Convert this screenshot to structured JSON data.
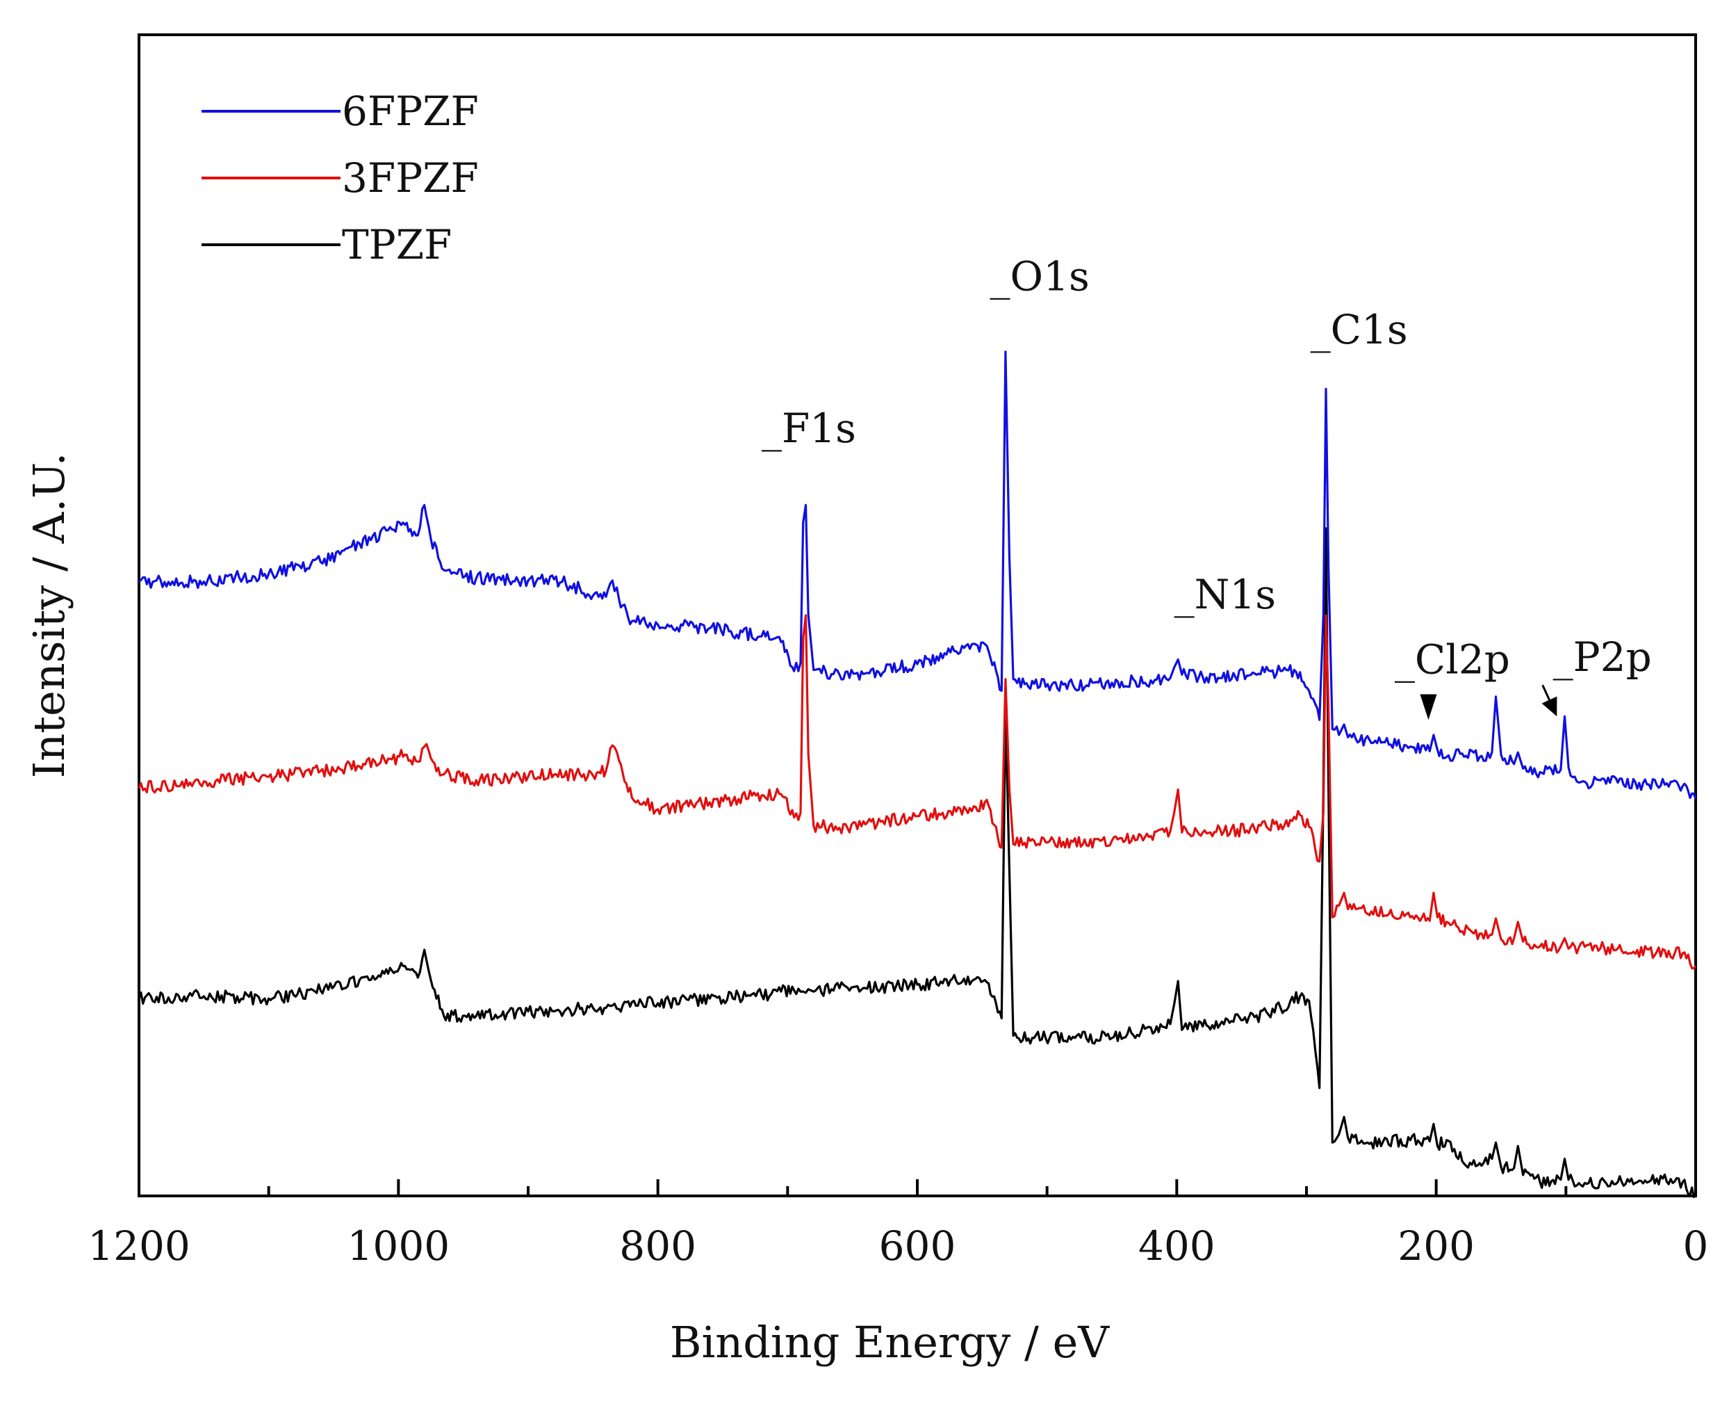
{
  "chart_data": {
    "type": "line",
    "title": "",
    "xlabel": "Binding Energy / eV",
    "ylabel": "Intensity / A.U.",
    "xlim": [
      1200,
      0
    ],
    "x_reversed": true,
    "x_ticks": [
      1200,
      1000,
      800,
      600,
      400,
      200,
      0
    ],
    "x_tick_labels": [
      "1200",
      "1000",
      "800",
      "600",
      "400",
      "200",
      "0"
    ],
    "y_ticks_shown": false,
    "ylim": [
      0,
      100
    ],
    "legend_position": "top-left",
    "colors": {
      "6FPZF": "#1010e0",
      "3FPZF": "#e01010",
      "TPZF": "#000000"
    },
    "series": [
      {
        "name": "6FPZF",
        "color": "#1010e0",
        "points": [
          [
            1200,
            52.9
          ],
          [
            1150,
            52.9
          ],
          [
            1100,
            53.6
          ],
          [
            1060,
            54.6
          ],
          [
            1030,
            56.2
          ],
          [
            1005,
            57.4
          ],
          [
            995,
            57.8
          ],
          [
            985,
            56.9
          ],
          [
            980,
            59.5
          ],
          [
            975,
            56.6
          ],
          [
            965,
            53.9
          ],
          [
            940,
            53.2
          ],
          [
            900,
            53.0
          ],
          [
            880,
            53.1
          ],
          [
            860,
            52.3
          ],
          [
            850,
            51.7
          ],
          [
            840,
            51.6
          ],
          [
            835,
            53.0
          ],
          [
            830,
            51.4
          ],
          [
            820,
            49.5
          ],
          [
            800,
            49.2
          ],
          [
            760,
            48.9
          ],
          [
            720,
            48.2
          ],
          [
            705,
            47.7
          ],
          [
            695,
            45.2
          ],
          [
            690,
            45.9
          ],
          [
            688,
            58.0
          ],
          [
            686,
            59.5
          ],
          [
            684,
            50.0
          ],
          [
            680,
            45.3
          ],
          [
            660,
            44.9
          ],
          [
            640,
            45.0
          ],
          [
            600,
            45.8
          ],
          [
            570,
            46.9
          ],
          [
            555,
            47.5
          ],
          [
            545,
            46.9
          ],
          [
            535,
            43.5
          ],
          [
            532,
            72.7
          ],
          [
            529,
            55.0
          ],
          [
            526,
            44.5
          ],
          [
            510,
            44.1
          ],
          [
            480,
            44.0
          ],
          [
            450,
            44.2
          ],
          [
            420,
            44.4
          ],
          [
            405,
            44.6
          ],
          [
            402,
            45.5
          ],
          [
            399,
            46.2
          ],
          [
            396,
            44.9
          ],
          [
            380,
            44.7
          ],
          [
            340,
            45.0
          ],
          [
            320,
            45.2
          ],
          [
            305,
            45.1
          ],
          [
            298,
            43.5
          ],
          [
            290,
            41.0
          ],
          [
            287,
            50.0
          ],
          [
            285,
            69.5
          ],
          [
            283,
            54.0
          ],
          [
            280,
            40.2
          ],
          [
            275,
            39.7
          ],
          [
            271,
            40.6
          ],
          [
            268,
            39.5
          ],
          [
            250,
            39.0
          ],
          [
            220,
            38.7
          ],
          [
            205,
            38.3
          ],
          [
            202,
            39.7
          ],
          [
            199,
            38.4
          ],
          [
            192,
            37.8
          ],
          [
            180,
            38.1
          ],
          [
            165,
            37.9
          ],
          [
            157,
            38.2
          ],
          [
            154,
            43.0
          ],
          [
            150,
            38.0
          ],
          [
            140,
            37.2
          ],
          [
            137,
            38.2
          ],
          [
            133,
            36.8
          ],
          [
            120,
            36.5
          ],
          [
            104,
            36.7
          ],
          [
            101,
            41.3
          ],
          [
            98,
            36.9
          ],
          [
            90,
            35.6
          ],
          [
            60,
            35.6
          ],
          [
            30,
            35.4
          ],
          [
            10,
            35.3
          ],
          [
            0,
            34.2
          ]
        ]
      },
      {
        "name": "3FPZF",
        "color": "#e01010",
        "points": [
          [
            1200,
            35.1
          ],
          [
            1150,
            35.7
          ],
          [
            1100,
            36.1
          ],
          [
            1060,
            36.6
          ],
          [
            1030,
            37.0
          ],
          [
            1005,
            37.6
          ],
          [
            995,
            38.0
          ],
          [
            985,
            37.4
          ],
          [
            980,
            38.7
          ],
          [
            975,
            37.7
          ],
          [
            965,
            36.3
          ],
          [
            940,
            35.8
          ],
          [
            900,
            36.1
          ],
          [
            880,
            36.3
          ],
          [
            860,
            36.3
          ],
          [
            850,
            36.2
          ],
          [
            840,
            36.6
          ],
          [
            835,
            38.8
          ],
          [
            830,
            37.5
          ],
          [
            820,
            34.3
          ],
          [
            800,
            33.3
          ],
          [
            760,
            33.9
          ],
          [
            720,
            34.5
          ],
          [
            705,
            34.6
          ],
          [
            695,
            32.6
          ],
          [
            690,
            33.0
          ],
          [
            688,
            48.0
          ],
          [
            686,
            50.0
          ],
          [
            684,
            38.0
          ],
          [
            680,
            31.9
          ],
          [
            660,
            31.7
          ],
          [
            640,
            32.0
          ],
          [
            600,
            32.7
          ],
          [
            570,
            33.1
          ],
          [
            555,
            33.5
          ],
          [
            545,
            33.6
          ],
          [
            535,
            30.0
          ],
          [
            532,
            44.5
          ],
          [
            529,
            35.0
          ],
          [
            526,
            30.3
          ],
          [
            510,
            30.6
          ],
          [
            480,
            30.5
          ],
          [
            450,
            30.6
          ],
          [
            420,
            31.0
          ],
          [
            405,
            31.4
          ],
          [
            402,
            33.0
          ],
          [
            399,
            35.0
          ],
          [
            396,
            31.3
          ],
          [
            380,
            31.3
          ],
          [
            340,
            31.6
          ],
          [
            320,
            32.0
          ],
          [
            305,
            32.8
          ],
          [
            298,
            31.8
          ],
          [
            290,
            28.8
          ],
          [
            287,
            33.0
          ],
          [
            285,
            50.0
          ],
          [
            283,
            42.0
          ],
          [
            280,
            24.0
          ],
          [
            275,
            25.0
          ],
          [
            271,
            26.1
          ],
          [
            268,
            24.7
          ],
          [
            250,
            24.5
          ],
          [
            220,
            24.0
          ],
          [
            205,
            23.7
          ],
          [
            202,
            26.1
          ],
          [
            199,
            24.0
          ],
          [
            192,
            23.6
          ],
          [
            180,
            22.8
          ],
          [
            165,
            22.6
          ],
          [
            157,
            22.5
          ],
          [
            154,
            23.9
          ],
          [
            150,
            22.1
          ],
          [
            140,
            22.2
          ],
          [
            137,
            23.6
          ],
          [
            133,
            21.9
          ],
          [
            120,
            21.5
          ],
          [
            104,
            21.5
          ],
          [
            101,
            22.2
          ],
          [
            98,
            21.3
          ],
          [
            90,
            21.4
          ],
          [
            60,
            21.3
          ],
          [
            30,
            21.0
          ],
          [
            10,
            20.9
          ],
          [
            0,
            19.8
          ]
        ]
      },
      {
        "name": "TPZF",
        "color": "#000000",
        "points": [
          [
            1200,
            17.0
          ],
          [
            1150,
            17.2
          ],
          [
            1100,
            17.0
          ],
          [
            1060,
            17.7
          ],
          [
            1030,
            18.6
          ],
          [
            1005,
            19.4
          ],
          [
            995,
            19.8
          ],
          [
            985,
            18.8
          ],
          [
            980,
            21.2
          ],
          [
            975,
            18.6
          ],
          [
            965,
            15.5
          ],
          [
            940,
            15.5
          ],
          [
            900,
            15.9
          ],
          [
            880,
            15.9
          ],
          [
            860,
            16.1
          ],
          [
            850,
            16.2
          ],
          [
            840,
            16.2
          ],
          [
            835,
            16.4
          ],
          [
            830,
            16.1
          ],
          [
            820,
            16.7
          ],
          [
            800,
            16.6
          ],
          [
            760,
            17.0
          ],
          [
            720,
            17.3
          ],
          [
            705,
            17.6
          ],
          [
            695,
            17.7
          ],
          [
            690,
            17.6
          ],
          [
            688,
            17.6
          ],
          [
            686,
            17.5
          ],
          [
            684,
            17.8
          ],
          [
            680,
            17.6
          ],
          [
            660,
            17.9
          ],
          [
            640,
            17.9
          ],
          [
            600,
            18.2
          ],
          [
            570,
            18.5
          ],
          [
            555,
            18.7
          ],
          [
            545,
            18.3
          ],
          [
            535,
            15.3
          ],
          [
            532,
            42.0
          ],
          [
            529,
            28.0
          ],
          [
            526,
            13.8
          ],
          [
            510,
            13.6
          ],
          [
            480,
            13.7
          ],
          [
            450,
            13.6
          ],
          [
            420,
            14.5
          ],
          [
            405,
            14.8
          ],
          [
            402,
            16.5
          ],
          [
            399,
            18.5
          ],
          [
            396,
            14.3
          ],
          [
            380,
            14.6
          ],
          [
            340,
            15.4
          ],
          [
            320,
            16.2
          ],
          [
            305,
            17.2
          ],
          [
            298,
            16.8
          ],
          [
            290,
            9.3
          ],
          [
            287,
            35.0
          ],
          [
            285,
            57.5
          ],
          [
            283,
            35.0
          ],
          [
            280,
            4.6
          ],
          [
            275,
            5.3
          ],
          [
            271,
            6.8
          ],
          [
            268,
            5.0
          ],
          [
            250,
            4.6
          ],
          [
            220,
            4.8
          ],
          [
            205,
            4.7
          ],
          [
            202,
            6.2
          ],
          [
            199,
            4.3
          ],
          [
            192,
            4.8
          ],
          [
            180,
            3.0
          ],
          [
            165,
            2.6
          ],
          [
            157,
            3.2
          ],
          [
            154,
            4.6
          ],
          [
            150,
            2.5
          ],
          [
            140,
            2.4
          ],
          [
            137,
            4.3
          ],
          [
            133,
            1.8
          ],
          [
            120,
            1.2
          ],
          [
            104,
            1.4
          ],
          [
            101,
            3.2
          ],
          [
            98,
            1.4
          ],
          [
            90,
            1.1
          ],
          [
            60,
            1.2
          ],
          [
            30,
            1.5
          ],
          [
            10,
            1.2
          ],
          [
            0,
            0.0
          ]
        ]
      }
    ],
    "annotations": [
      {
        "label": "_F1s",
        "x": 720,
        "y": 64.9
      },
      {
        "label": "_O1s",
        "x": 544,
        "y": 78.0
      },
      {
        "label": "_C1s",
        "x": 297,
        "y": 73.4
      },
      {
        "label": "_N1s",
        "x": 402,
        "y": 50.6
      },
      {
        "label": "_Cl2p",
        "x": 232,
        "y": 45.0
      },
      {
        "label": "_P2p",
        "x": 110,
        "y": 45.2
      }
    ],
    "arrows": [
      {
        "target": "_Cl2p",
        "x": 206,
        "y_from": 43.2,
        "y_to": 41.0
      },
      {
        "target": "_P2p",
        "x_from": 118,
        "y_from": 44.0,
        "x_to": 107,
        "y_to": 41.3
      }
    ]
  }
}
